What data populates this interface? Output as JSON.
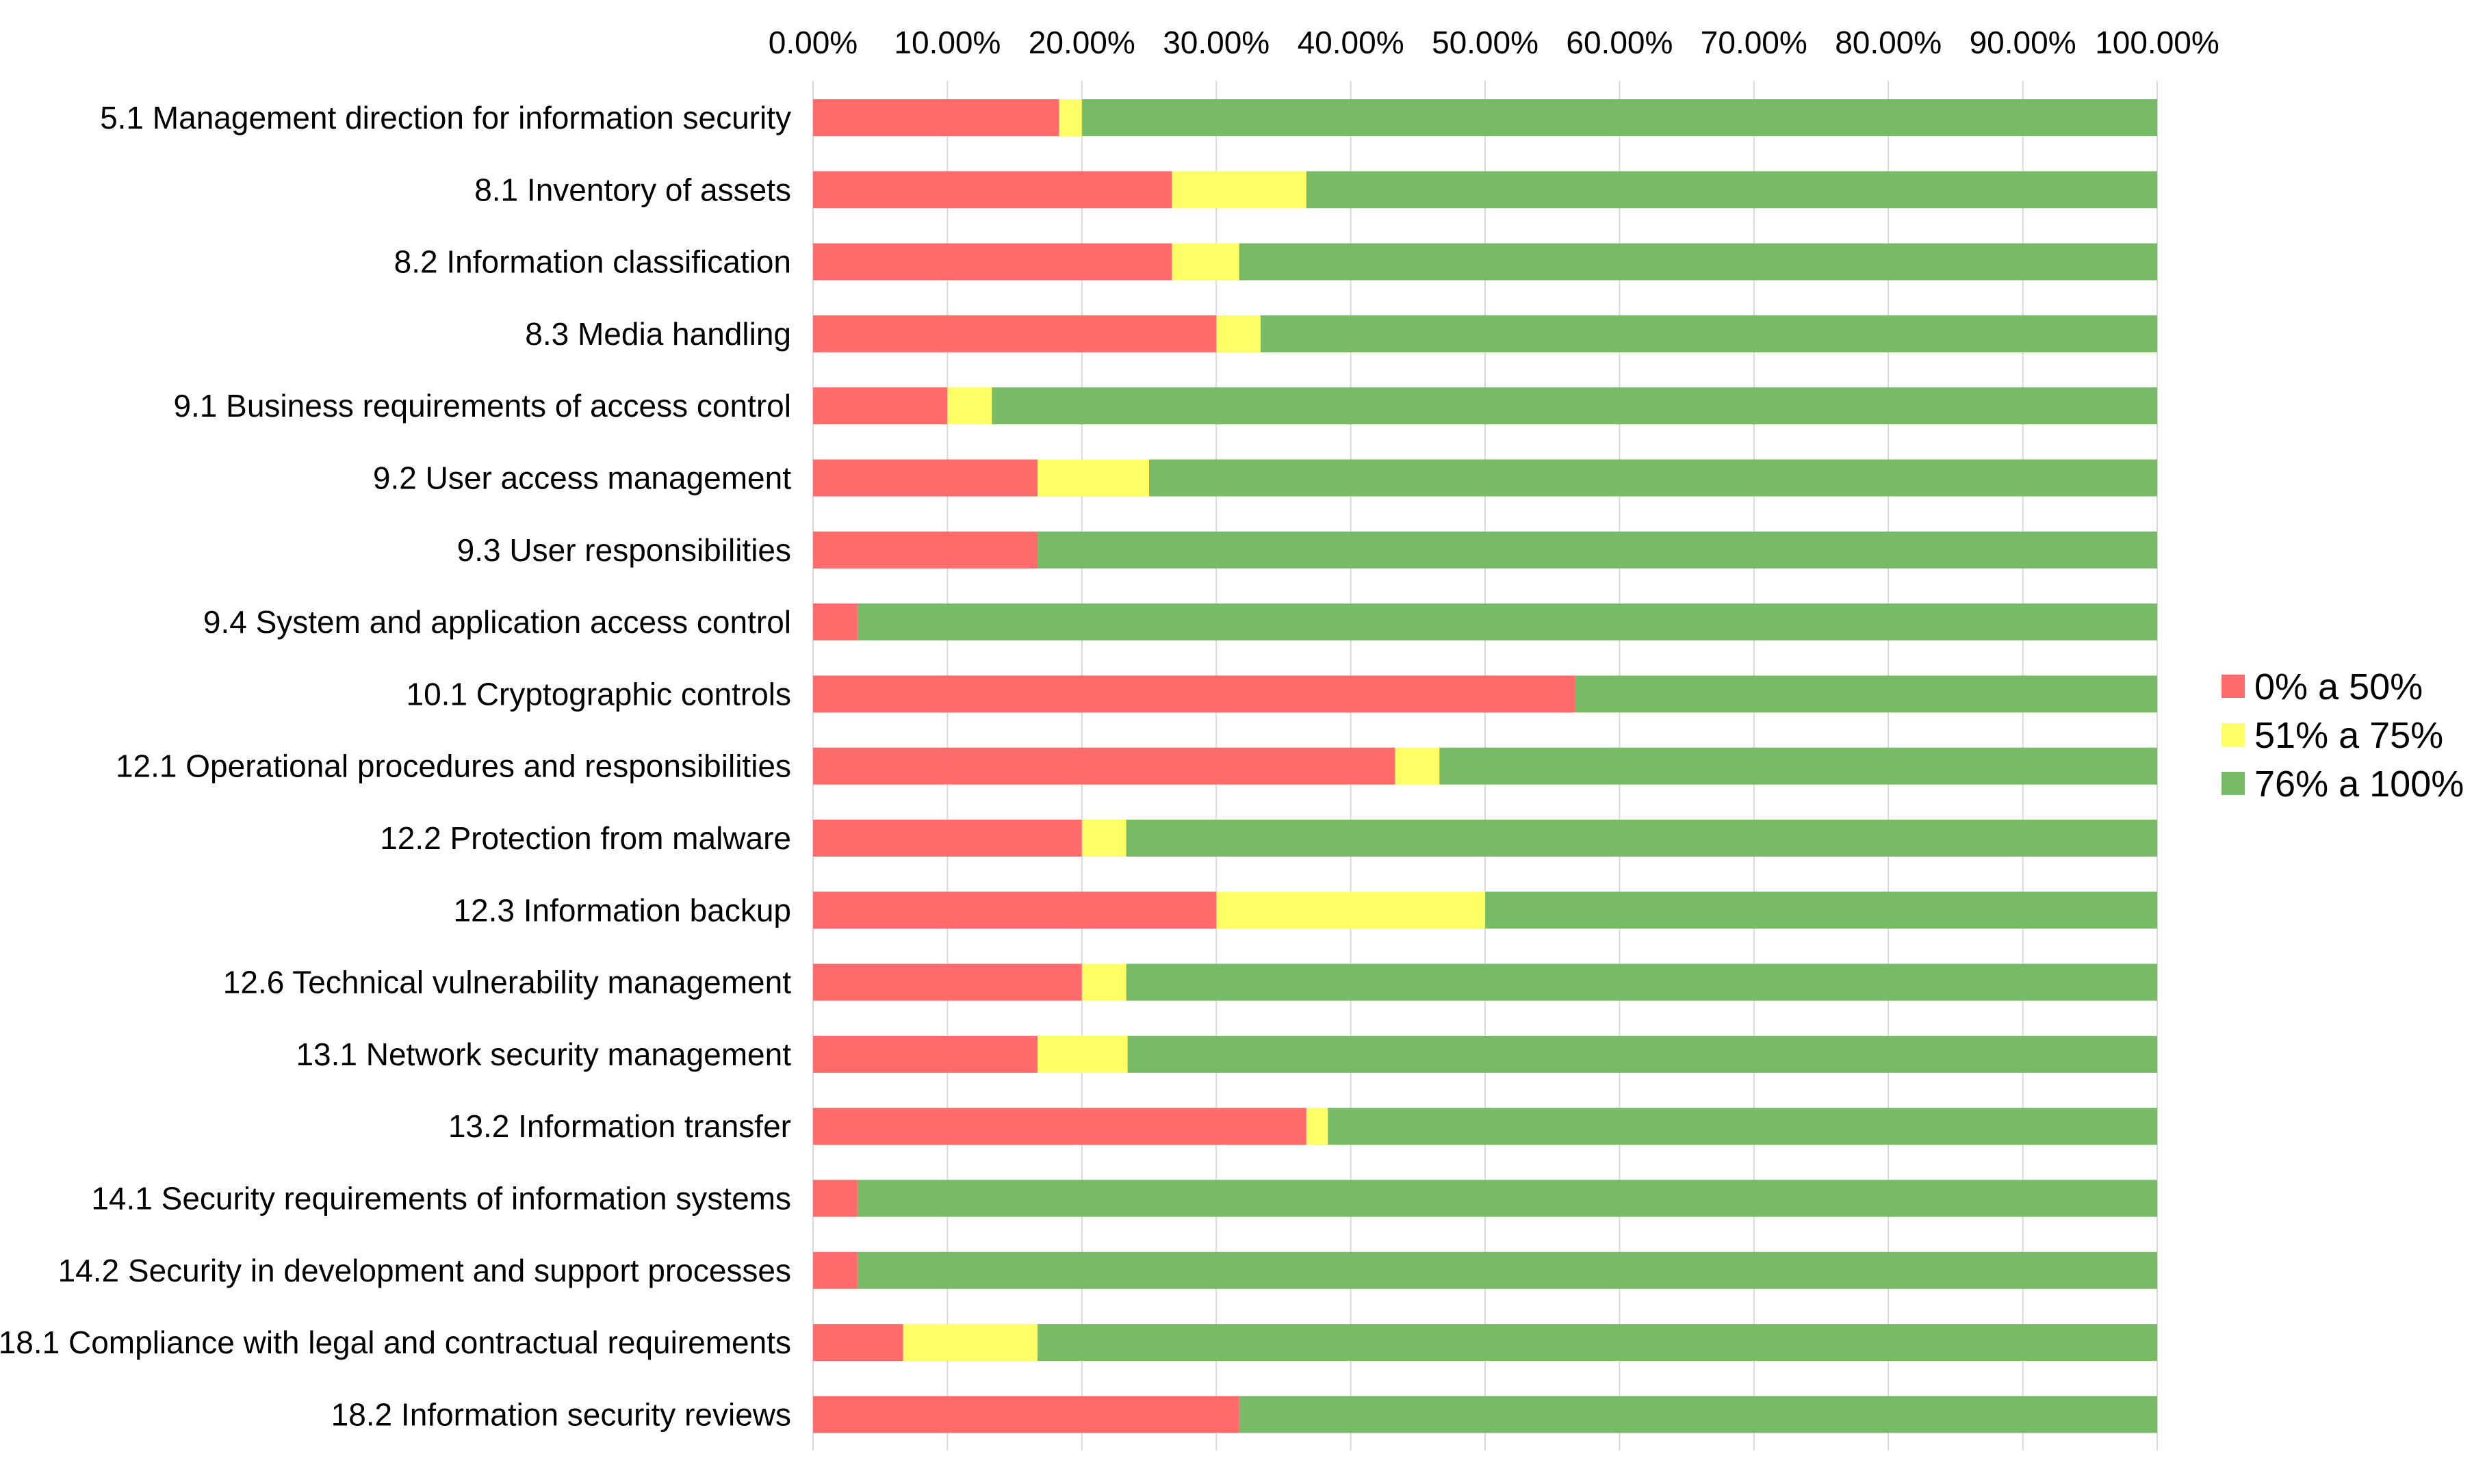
{
  "chart_data": {
    "type": "bar",
    "orientation": "horizontal",
    "stacked": "percent",
    "title": "",
    "xlabel": "",
    "ylabel": "",
    "xlim": [
      0,
      100
    ],
    "grid": true,
    "legend_position": "right",
    "x_tick_labels": [
      "0.00%",
      "10.00%",
      "20.00%",
      "30.00%",
      "40.00%",
      "50.00%",
      "60.00%",
      "70.00%",
      "80.00%",
      "90.00%",
      "100.00%"
    ],
    "categories": [
      "5.1 Management direction for information security",
      "8.1 Inventory of assets",
      "8.2 Information classification",
      "8.3 Media handling",
      "9.1 Business requirements of access control",
      "9.2 User access management",
      "9.3 User responsibilities",
      "9.4 System and application access control",
      "10.1 Cryptographic controls",
      "12.1 Operational procedures and responsibilities",
      "12.2 Protection from malware",
      "12.3 Information backup",
      "12.6 Technical vulnerability management",
      "13.1 Network security management",
      "13.2 Information transfer",
      "14.1 Security requirements of information systems",
      "14.2 Security in development and support processes",
      "18.1 Compliance with legal and contractual requirements",
      "18.2 Information security reviews"
    ],
    "series": [
      {
        "name": "0% a 50%",
        "color": "#ff6b6b",
        "values": [
          18.3,
          26.7,
          26.7,
          30.0,
          10.0,
          16.7,
          16.7,
          3.3,
          56.7,
          43.3,
          20.0,
          30.0,
          20.0,
          16.7,
          36.7,
          3.3,
          3.3,
          6.7,
          31.7
        ]
      },
      {
        "name": "51% a 75%",
        "color": "#ffff66",
        "values": [
          1.7,
          10.0,
          5.0,
          3.3,
          3.3,
          8.3,
          0,
          0,
          0,
          3.3,
          3.3,
          20.0,
          3.3,
          6.7,
          1.6,
          0,
          0,
          10.0,
          0
        ]
      },
      {
        "name": "76% a 100%",
        "color": "#77bb66",
        "values": [
          80.0,
          63.3,
          68.3,
          66.7,
          86.7,
          75.0,
          83.3,
          96.7,
          43.3,
          53.4,
          76.7,
          50.0,
          76.7,
          76.6,
          61.7,
          96.7,
          96.7,
          83.3,
          68.3
        ]
      }
    ]
  }
}
